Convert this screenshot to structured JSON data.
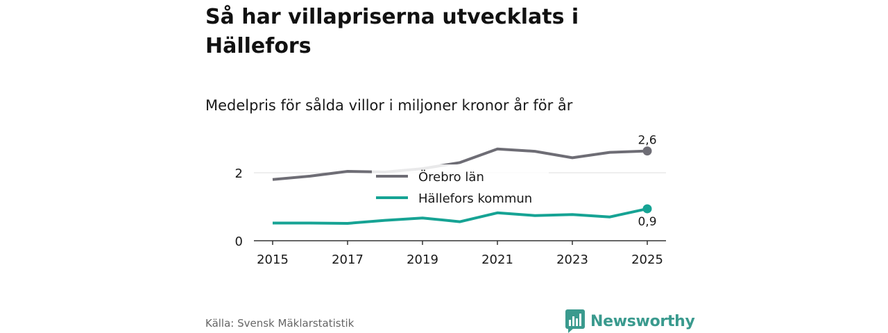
{
  "header": {
    "title": "Så har villapriserna utvecklats i Hällefors",
    "subtitle": "Medelpris för sålda villor i miljoner kronor år för år"
  },
  "chart_data": {
    "type": "line",
    "x": [
      2015,
      2016,
      2017,
      2018,
      2019,
      2020,
      2021,
      2022,
      2023,
      2024,
      2025
    ],
    "x_tick_labels": [
      "2015",
      "2017",
      "2019",
      "2021",
      "2023",
      "2025"
    ],
    "y_tick_labels": [
      "0",
      "2"
    ],
    "ylim": [
      0,
      2.75
    ],
    "grid": "y",
    "legend_placement": "center",
    "series": [
      {
        "name": "Örebro län",
        "color": "#6e6d75",
        "values": [
          1.8,
          1.9,
          2.04,
          2.02,
          2.12,
          2.3,
          2.7,
          2.63,
          2.44,
          2.6,
          2.64
        ],
        "end_label": "2,6"
      },
      {
        "name": "Hällefors kommun",
        "color": "#16a394",
        "values": [
          0.52,
          0.52,
          0.51,
          0.6,
          0.67,
          0.56,
          0.82,
          0.74,
          0.77,
          0.7,
          0.94
        ],
        "end_label": "0,9"
      }
    ]
  },
  "footer": {
    "source": "Källa: Svensk Mäklarstatistik",
    "brand": "Newsworthy",
    "brand_icon": "newsworthy-bar-chart-icon",
    "brand_color": "#3a9a8e"
  }
}
